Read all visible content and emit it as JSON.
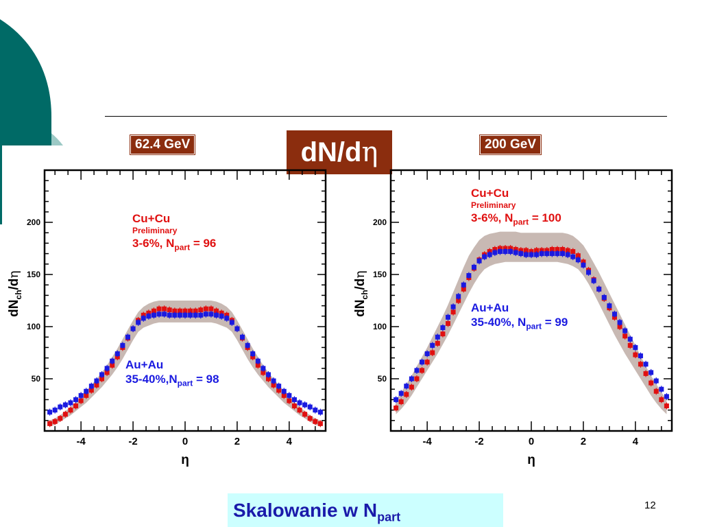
{
  "slide": {
    "title_prefix": "dN/d",
    "title_eta": "η",
    "footer_text": "Skalowanie  w N",
    "footer_sub": "part",
    "page_number": "12",
    "colors": {
      "badge": "#8b2d0e",
      "teal": "#006a66",
      "footer_bg": "#ccffff",
      "band": "#c8b9b3",
      "cucu": "#e01010",
      "auau": "#1a1ae0"
    }
  },
  "chart_data": [
    {
      "type": "scatter",
      "energy_label": "62.4 GeV",
      "xlabel": "η",
      "ylabel": "dN_ch/dη",
      "xlim": [
        -5.4,
        5.4
      ],
      "ylim": [
        0,
        250
      ],
      "xticks": [
        "-4",
        "-2",
        "0",
        "2",
        "4"
      ],
      "yticks": [
        "50",
        "100",
        "150",
        "200"
      ],
      "annotations": {
        "cucu_system": "Cu+Cu",
        "cucu_note": "Preliminary",
        "cucu_centrality": "3-6%, N",
        "cucu_npart": " = 96",
        "auau_system": "Au+Au",
        "auau_centrality": "35-40%,N",
        "auau_npart": " = 98",
        "sub": "part"
      },
      "series": [
        {
          "name": "Cu+Cu",
          "color": "#e01010",
          "x": [
            -5.2,
            -5.0,
            -4.8,
            -4.6,
            -4.4,
            -4.2,
            -4.0,
            -3.8,
            -3.6,
            -3.4,
            -3.2,
            -3.0,
            -2.8,
            -2.6,
            -2.4,
            -2.2,
            -2.0,
            -1.8,
            -1.6,
            -1.4,
            -1.2,
            -1.0,
            -0.8,
            -0.6,
            -0.4,
            -0.2,
            0.0,
            0.2,
            0.4,
            0.6,
            0.8,
            1.0,
            1.2,
            1.4,
            1.6,
            1.8,
            2.0,
            2.2,
            2.4,
            2.6,
            2.8,
            3.0,
            3.2,
            3.4,
            3.6,
            3.8,
            4.0,
            4.2,
            4.4,
            4.6,
            4.8,
            5.0,
            5.2
          ],
          "y": [
            7,
            9,
            12,
            16,
            20,
            24,
            29,
            34,
            39,
            44,
            50,
            56,
            63,
            71,
            80,
            89,
            98,
            106,
            111,
            113,
            115,
            117,
            117,
            116,
            115,
            115,
            115,
            115,
            115,
            116,
            117,
            117,
            115,
            113,
            111,
            106,
            98,
            89,
            80,
            71,
            63,
            56,
            50,
            44,
            39,
            34,
            29,
            24,
            20,
            16,
            12,
            9,
            7
          ]
        },
        {
          "name": "Au+Au",
          "color": "#1a1ae0",
          "x": [
            -5.2,
            -5.0,
            -4.8,
            -4.6,
            -4.4,
            -4.2,
            -4.0,
            -3.8,
            -3.6,
            -3.4,
            -3.2,
            -3.0,
            -2.8,
            -2.6,
            -2.4,
            -2.2,
            -2.0,
            -1.8,
            -1.6,
            -1.4,
            -1.2,
            -1.0,
            -0.8,
            -0.6,
            -0.4,
            -0.2,
            0.0,
            0.2,
            0.4,
            0.6,
            0.8,
            1.0,
            1.2,
            1.4,
            1.6,
            1.8,
            2.0,
            2.2,
            2.4,
            2.6,
            2.8,
            3.0,
            3.2,
            3.4,
            3.6,
            3.8,
            4.0,
            4.2,
            4.4,
            4.6,
            4.8,
            5.0,
            5.2
          ],
          "y": [
            18,
            20,
            23,
            25,
            27,
            30,
            34,
            38,
            43,
            48,
            54,
            60,
            67,
            74,
            82,
            90,
            98,
            104,
            108,
            110,
            111,
            112,
            112,
            111,
            111,
            111,
            111,
            111,
            111,
            111,
            112,
            112,
            111,
            110,
            108,
            104,
            98,
            90,
            82,
            74,
            67,
            60,
            54,
            48,
            43,
            38,
            34,
            30,
            27,
            25,
            23,
            20,
            18
          ]
        }
      ],
      "band_upper": [
        10,
        12,
        15,
        19,
        23,
        28,
        33,
        38,
        44,
        50,
        56,
        63,
        71,
        79,
        88,
        97,
        106,
        114,
        119,
        122,
        124,
        125,
        125,
        125,
        125,
        125,
        125,
        125,
        125,
        125,
        125,
        125,
        124,
        122,
        119,
        114,
        106,
        97,
        88,
        79,
        71,
        63,
        56,
        50,
        44,
        38,
        33,
        28,
        23,
        19,
        15,
        12,
        10
      ],
      "band_lower": [
        4,
        6,
        9,
        12,
        15,
        19,
        23,
        27,
        32,
        37,
        42,
        48,
        54,
        61,
        69,
        78,
        87,
        95,
        99,
        101,
        103,
        104,
        104,
        104,
        104,
        104,
        104,
        104,
        104,
        104,
        104,
        104,
        103,
        101,
        99,
        95,
        87,
        78,
        69,
        61,
        54,
        48,
        42,
        37,
        32,
        27,
        23,
        19,
        15,
        12,
        9,
        6,
        4
      ]
    },
    {
      "type": "scatter",
      "energy_label": "200 GeV",
      "xlabel": "η",
      "ylabel": "dN_ch/dη",
      "xlim": [
        -5.4,
        5.4
      ],
      "ylim": [
        0,
        250
      ],
      "xticks": [
        "-4",
        "-2",
        "0",
        "2",
        "4"
      ],
      "yticks": [
        "50",
        "100",
        "150",
        "200"
      ],
      "annotations": {
        "cucu_system": "Cu+Cu",
        "cucu_note": "Preliminary",
        "cucu_centrality": "3-6%, N",
        "cucu_npart": " = 100",
        "auau_system": "Au+Au",
        "auau_centrality": "35-40%, N",
        "auau_npart": " = 99",
        "sub": "part"
      },
      "series": [
        {
          "name": "Cu+Cu",
          "color": "#e01010",
          "x": [
            -5.2,
            -5.0,
            -4.8,
            -4.6,
            -4.4,
            -4.2,
            -4.0,
            -3.8,
            -3.6,
            -3.4,
            -3.2,
            -3.0,
            -2.8,
            -2.6,
            -2.4,
            -2.2,
            -2.0,
            -1.8,
            -1.6,
            -1.4,
            -1.2,
            -1.0,
            -0.8,
            -0.6,
            -0.4,
            -0.2,
            0.0,
            0.2,
            0.4,
            0.6,
            0.8,
            1.0,
            1.2,
            1.4,
            1.6,
            1.8,
            2.0,
            2.2,
            2.4,
            2.6,
            2.8,
            3.0,
            3.2,
            3.4,
            3.6,
            3.8,
            4.0,
            4.2,
            4.4,
            4.6,
            4.8,
            5.0,
            5.2
          ],
          "y": [
            22,
            28,
            35,
            42,
            50,
            58,
            66,
            75,
            84,
            93,
            103,
            114,
            125,
            136,
            147,
            156,
            164,
            169,
            172,
            174,
            175,
            175,
            175,
            174,
            173,
            173,
            172,
            173,
            173,
            173,
            174,
            174,
            174,
            173,
            172,
            168,
            162,
            154,
            145,
            136,
            127,
            118,
            109,
            100,
            91,
            82,
            73,
            64,
            55,
            46,
            38,
            30,
            24
          ]
        },
        {
          "name": "Au+Au",
          "color": "#1a1ae0",
          "x": [
            -5.2,
            -5.0,
            -4.8,
            -4.6,
            -4.4,
            -4.2,
            -4.0,
            -3.8,
            -3.6,
            -3.4,
            -3.2,
            -3.0,
            -2.8,
            -2.6,
            -2.4,
            -2.2,
            -2.0,
            -1.8,
            -1.6,
            -1.4,
            -1.2,
            -1.0,
            -0.8,
            -0.6,
            -0.4,
            -0.2,
            0.0,
            0.2,
            0.4,
            0.6,
            0.8,
            1.0,
            1.2,
            1.4,
            1.6,
            1.8,
            2.0,
            2.2,
            2.4,
            2.6,
            2.8,
            3.0,
            3.2,
            3.4,
            3.6,
            3.8,
            4.0,
            4.2,
            4.4,
            4.6,
            4.8,
            5.0,
            5.2
          ],
          "y": [
            30,
            36,
            43,
            50,
            58,
            66,
            74,
            82,
            90,
            99,
            109,
            119,
            129,
            140,
            149,
            157,
            163,
            167,
            169,
            171,
            172,
            172,
            172,
            171,
            170,
            169,
            169,
            169,
            170,
            170,
            170,
            170,
            170,
            169,
            167,
            164,
            159,
            152,
            144,
            136,
            128,
            120,
            112,
            104,
            96,
            88,
            80,
            72,
            64,
            56,
            48,
            40,
            33
          ]
        }
      ],
      "band_upper": [
        30,
        37,
        45,
        53,
        62,
        71,
        80,
        90,
        100,
        110,
        121,
        133,
        145,
        157,
        168,
        176,
        183,
        187,
        189,
        190,
        191,
        191,
        191,
        191,
        190,
        190,
        190,
        190,
        190,
        190,
        190,
        190,
        190,
        189,
        187,
        183,
        178,
        170,
        161,
        152,
        142,
        132,
        122,
        112,
        102,
        92,
        82,
        72,
        62,
        53,
        45,
        37,
        30
      ],
      "band_lower": [
        16,
        21,
        27,
        34,
        42,
        50,
        58,
        66,
        74,
        83,
        92,
        102,
        112,
        122,
        132,
        141,
        149,
        155,
        158,
        160,
        161,
        162,
        162,
        162,
        162,
        162,
        162,
        162,
        162,
        162,
        162,
        162,
        161,
        160,
        158,
        155,
        149,
        141,
        132,
        122,
        112,
        102,
        92,
        83,
        74,
        66,
        58,
        50,
        42,
        34,
        27,
        21,
        16
      ]
    }
  ]
}
